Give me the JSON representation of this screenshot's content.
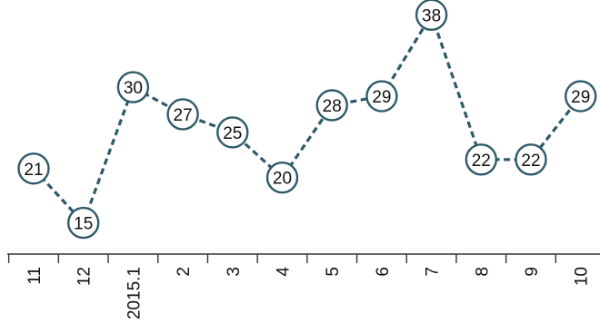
{
  "chart_data": {
    "type": "line",
    "title": "",
    "xlabel": "",
    "ylabel": "",
    "categories": [
      "11",
      "12",
      "2015.1",
      "2",
      "3",
      "4",
      "5",
      "6",
      "7",
      "8",
      "9",
      "10"
    ],
    "series": [
      {
        "values": [
          21,
          15,
          30,
          27,
          25,
          20,
          28,
          29,
          38,
          22,
          22,
          29
        ]
      }
    ],
    "data_labels": [
      "21",
      "15",
      "30",
      "27",
      "25",
      "20",
      "28",
      "29",
      "38",
      "22",
      "22",
      "29"
    ],
    "ylim": [
      10,
      40
    ],
    "grid": false,
    "legend": "none",
    "line_style": "dashed",
    "marker": "circle",
    "colors": {
      "line": "#2e5a68",
      "marker_fill": "#ffffff",
      "marker_stroke": "#2e5a68",
      "axis": "#333333",
      "text": "#111111"
    }
  }
}
